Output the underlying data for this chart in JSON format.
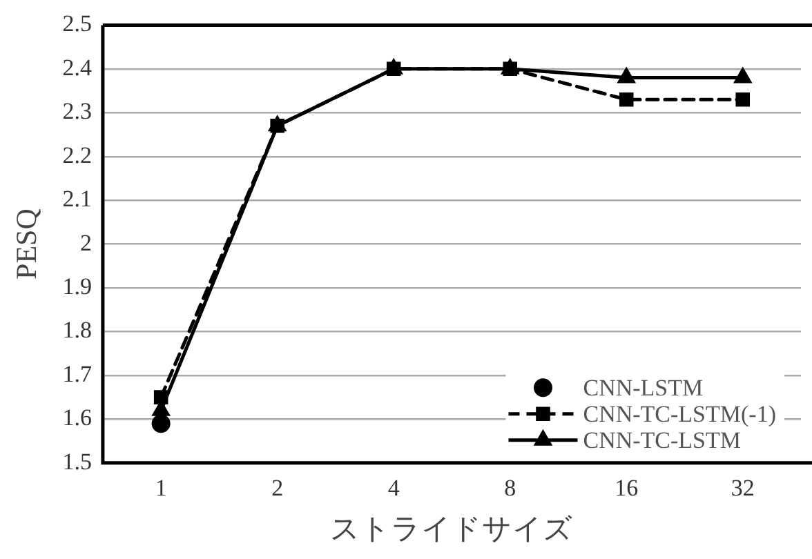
{
  "chart_data": {
    "type": "line",
    "xlabel": "ストライドサイズ",
    "ylabel": "PESQ",
    "categories": [
      "1",
      "2",
      "4",
      "8",
      "16",
      "32"
    ],
    "ylim": [
      1.5,
      2.5
    ],
    "yticks": [
      1.5,
      1.6,
      1.7,
      1.8,
      1.9,
      2,
      2.1,
      2.2,
      2.3,
      2.4,
      2.5
    ],
    "grid": "y",
    "legend": "bottom right",
    "series": [
      {
        "name": "CNN-LSTM",
        "type": "scatter",
        "color": "#000000",
        "marker": "circle",
        "values": [
          1.59,
          null,
          null,
          null,
          null,
          null
        ]
      },
      {
        "name": "CNN-TC-LSTM(-1)",
        "type": "line",
        "color": "#000000",
        "marker": "square",
        "line_style": "dashed",
        "values": [
          1.65,
          2.27,
          2.4,
          2.4,
          2.33,
          2.33
        ]
      },
      {
        "name": "CNN-TC-LSTM",
        "type": "line",
        "color": "#000000",
        "marker": "triangle",
        "line_style": "solid",
        "values": [
          1.62,
          2.27,
          2.4,
          2.4,
          2.38,
          2.38
        ]
      }
    ]
  }
}
